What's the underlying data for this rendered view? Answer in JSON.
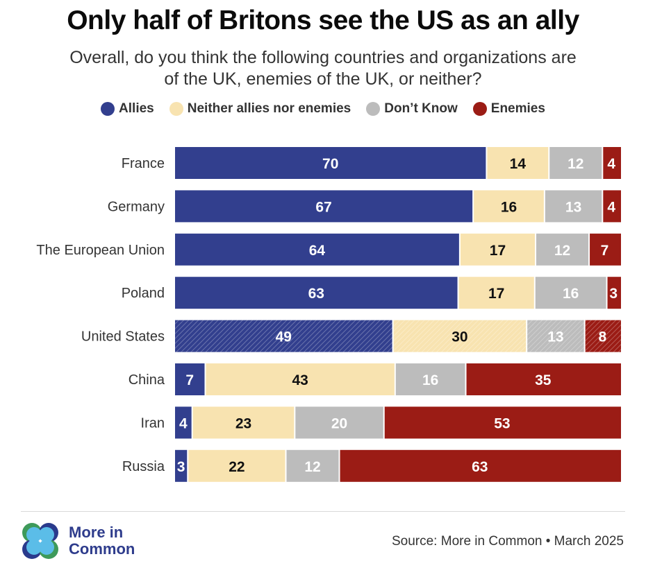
{
  "header": {
    "title": "Only half of Britons see the US as an ally",
    "subtitle_line1": "Overall, do you think the following countries and organizations are",
    "subtitle_line2": "of the UK, enemies of the UK, or neither?"
  },
  "legend": [
    {
      "label": "Allies",
      "color": "#323f8e"
    },
    {
      "label": "Neither allies nor enemies",
      "color": "#f8e3b0"
    },
    {
      "label": "Don’t Know",
      "color": "#bcbcbc"
    },
    {
      "label": "Enemies",
      "color": "#9b1c15"
    }
  ],
  "chart_data": {
    "type": "bar",
    "orientation": "horizontal",
    "stacked": true,
    "title": "Only half of Britons see the US as an ally",
    "subtitle": "Overall, do you think the following countries and organizations are of the UK, enemies of the UK, or neither?",
    "xlabel": "",
    "ylabel": "",
    "categories": [
      "France",
      "Germany",
      "The European Union",
      "Poland",
      "United States",
      "China",
      "Iran",
      "Russia"
    ],
    "highlighted_category": "United States",
    "series": [
      {
        "name": "Allies",
        "color": "#323f8e",
        "label_color": "#ffffff",
        "values": [
          70,
          67,
          64,
          63,
          49,
          7,
          4,
          3
        ]
      },
      {
        "name": "Neither allies nor enemies",
        "color": "#f8e3b0",
        "label_color": "#111111",
        "values": [
          14,
          16,
          17,
          17,
          30,
          43,
          23,
          22
        ]
      },
      {
        "name": "Don’t Know",
        "color": "#bcbcbc",
        "label_color": "#ffffff",
        "values": [
          12,
          13,
          12,
          16,
          13,
          16,
          20,
          12
        ]
      },
      {
        "name": "Enemies",
        "color": "#9b1c15",
        "label_color": "#ffffff",
        "values": [
          4,
          4,
          7,
          3,
          8,
          35,
          53,
          63
        ]
      }
    ],
    "legend_position": "top",
    "grid": false
  },
  "footer": {
    "logo_line1": "More in",
    "logo_line2": "Common",
    "source": "Source: More in Common • March 2025"
  }
}
